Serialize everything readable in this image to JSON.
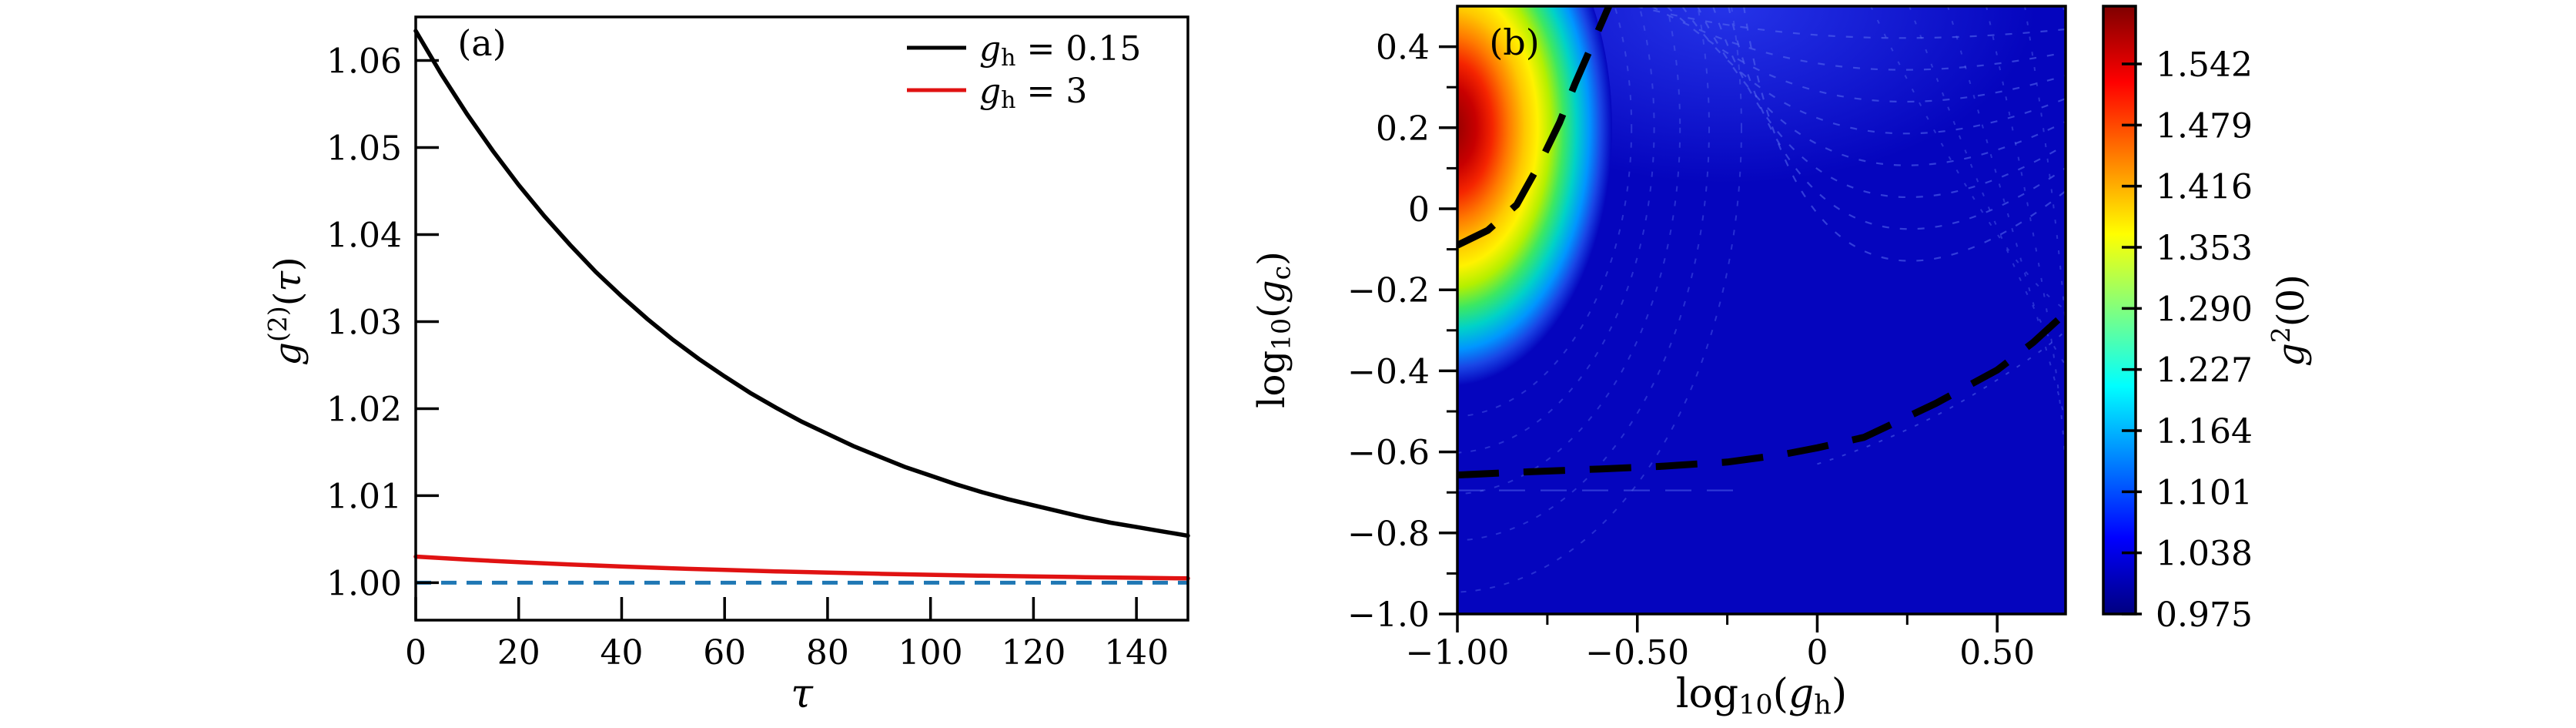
{
  "figure": {
    "background": "#ffffff"
  },
  "colors": {
    "axis": "#000000",
    "curve_black": "#000000",
    "curve_red": "#e01212",
    "baseline_blue": "#1f77b4",
    "heatmap_base": "#0505be",
    "heatmap_haze": "#2b3cf0",
    "contour_faint": "#5a6ef0",
    "dashed_boundary": "#000000"
  },
  "chart_data": {
    "panels": [
      {
        "type": "line",
        "panel_label": "(a)",
        "xlabel_parts": [
          {
            "t": "τ",
            "it": true
          }
        ],
        "ylabel_parts": [
          {
            "t": "g",
            "it": true
          },
          {
            "t": "(2)",
            "pos": "sup"
          },
          {
            "t": "("
          },
          {
            "t": "τ",
            "it": true
          },
          {
            "t": ")"
          }
        ],
        "xlim": [
          0,
          150
        ],
        "ylim": [
          0.9957,
          1.065
        ],
        "xticks": {
          "values": [
            0,
            20,
            40,
            60,
            80,
            100,
            120,
            140
          ],
          "labels": [
            "0",
            "20",
            "40",
            "60",
            "80",
            "100",
            "120",
            "140"
          ]
        },
        "yticks": {
          "values": [
            1.0,
            1.01,
            1.02,
            1.03,
            1.04,
            1.05,
            1.06
          ],
          "labels": [
            "1.00",
            "1.01",
            "1.02",
            "1.03",
            "1.04",
            "1.05",
            "1.06"
          ]
        },
        "legend": [
          {
            "label_parts": [
              {
                "t": "g",
                "it": true
              },
              {
                "t": "h",
                "pos": "sub"
              },
              {
                "t": " = 0.15"
              }
            ],
            "color_key": "curve_black"
          },
          {
            "label_parts": [
              {
                "t": "g",
                "it": true
              },
              {
                "t": "h",
                "pos": "sub"
              },
              {
                "t": " = 3"
              }
            ],
            "color_key": "curve_red"
          }
        ],
        "series": [
          {
            "name": "g_h = 0.15",
            "color_key": "curve_black",
            "x": [
              0,
              5,
              10,
              15,
              20,
              25,
              30,
              35,
              40,
              45,
              50,
              55,
              60,
              65,
              70,
              75,
              80,
              85,
              90,
              95,
              100,
              105,
              110,
              115,
              120,
              125,
              130,
              135,
              140,
              145,
              150
            ],
            "y": [
              1.0634,
              1.0584,
              1.0538,
              1.0496,
              1.0457,
              1.0421,
              1.0388,
              1.0357,
              1.0329,
              1.0303,
              1.0279,
              1.0257,
              1.0237,
              1.0218,
              1.0201,
              1.0185,
              1.0171,
              1.0157,
              1.0145,
              1.0133,
              1.0123,
              1.0113,
              1.0104,
              1.0096,
              1.0089,
              1.0082,
              1.0075,
              1.0069,
              1.0064,
              1.0059,
              1.0054
            ]
          },
          {
            "name": "g_h = 3",
            "color_key": "curve_red",
            "x": [
              0,
              10,
              20,
              30,
              40,
              50,
              60,
              70,
              80,
              90,
              100,
              110,
              120,
              130,
              140,
              150
            ],
            "y": [
              1.003,
              1.00266,
              1.00236,
              1.0021,
              1.00186,
              1.00165,
              1.00147,
              1.0013,
              1.00116,
              1.00103,
              1.00091,
              1.00081,
              1.00072,
              1.00064,
              1.00057,
              1.0005
            ]
          }
        ],
        "baseline": {
          "value": 1.0,
          "color_key": "baseline_blue",
          "style": "dashed"
        }
      },
      {
        "type": "heatmap",
        "panel_label": "(b)",
        "xlabel_parts": [
          {
            "t": "log"
          },
          {
            "t": "10",
            "pos": "sub"
          },
          {
            "t": "("
          },
          {
            "t": "g",
            "it": true
          },
          {
            "t": "h",
            "pos": "sub"
          },
          {
            "t": ")"
          }
        ],
        "ylabel_parts": [
          {
            "t": "log"
          },
          {
            "t": "10",
            "pos": "sub"
          },
          {
            "t": "("
          },
          {
            "t": "g",
            "it": true
          },
          {
            "t": "c",
            "pos": "sub"
          },
          {
            "t": ")"
          }
        ],
        "xlim": [
          -1.0,
          0.69
        ],
        "ylim": [
          -1.0,
          0.5
        ],
        "xticks": {
          "values": [
            -1.0,
            -0.5,
            0,
            0.5
          ],
          "labels": [
            "−1.00",
            "−0.50",
            "0",
            "0.50"
          ],
          "minor": [
            -0.75,
            -0.25,
            0.25
          ]
        },
        "yticks": {
          "values": [
            0.4,
            0.2,
            0,
            -0.2,
            -0.4,
            -0.6,
            -0.8,
            -1.0
          ],
          "labels": [
            "0.4",
            "0.2",
            "0",
            "−0.2",
            "−0.4",
            "−0.6",
            "−0.8",
            "−1.0"
          ],
          "minor": [
            0.3,
            0.1,
            -0.1,
            -0.3,
            -0.5,
            -0.7,
            -0.9
          ]
        },
        "colormap": "jet",
        "value_range": [
          0.975,
          1.602
        ],
        "hotspot": {
          "center": [
            -1.0,
            0.2
          ],
          "peak_value": 1.58,
          "note": "maximum of g2(0) hugging the left edge near log10(gc)=0.2, rainbow rings decaying to deep blue ~0.99 elsewhere",
          "gradient_stops": [
            [
              0,
              "#8a0000"
            ],
            [
              0.16,
              "#c80000"
            ],
            [
              0.26,
              "#f52500"
            ],
            [
              0.36,
              "#ff7a00"
            ],
            [
              0.46,
              "#ffc800"
            ],
            [
              0.54,
              "#fff200"
            ],
            [
              0.62,
              "#b4f000"
            ],
            [
              0.7,
              "#3ce862"
            ],
            [
              0.78,
              "#00d2c8"
            ],
            [
              0.86,
              "#0096ff"
            ],
            [
              0.93,
              "#1946e6"
            ],
            [
              1,
              "#0505be"
            ]
          ]
        },
        "dashed_curves": [
          {
            "name": "upper-phase-boundary",
            "points": [
              [
                -1.0,
                -0.09
              ],
              [
                -0.915,
                -0.053
              ],
              [
                -0.835,
                0.01
              ],
              [
                -0.771,
                0.112
              ],
              [
                -0.716,
                0.213
              ],
              [
                -0.673,
                0.309
              ],
              [
                -0.626,
                0.404
              ],
              [
                -0.579,
                0.5
              ]
            ]
          },
          {
            "name": "lower-phase-boundary",
            "points": [
              [
                -1.0,
                -0.657
              ],
              [
                -0.8,
                -0.649
              ],
              [
                -0.6,
                -0.642
              ],
              [
                -0.44,
                -0.636
              ],
              [
                -0.25,
                -0.625
              ],
              [
                -0.1,
                -0.607
              ],
              [
                0.0,
                -0.59
              ],
              [
                0.13,
                -0.564
              ],
              [
                0.33,
                -0.48
              ],
              [
                0.5,
                -0.398
              ],
              [
                0.6,
                -0.33
              ],
              [
                0.69,
                -0.257
              ]
            ]
          }
        ],
        "colorbar": {
          "tick_labels": [
            "1.542",
            "1.479",
            "1.416",
            "1.353",
            "1.290",
            "1.227",
            "1.164",
            "1.101",
            "1.038",
            "0.975"
          ],
          "tick_values": [
            1.542,
            1.479,
            1.416,
            1.353,
            1.29,
            1.227,
            1.164,
            1.101,
            1.038,
            0.975
          ],
          "label_parts": [
            {
              "t": "g",
              "it": true
            },
            {
              "t": "2",
              "pos": "sup"
            },
            {
              "t": "(0)"
            }
          ],
          "jet_stops": [
            [
              0,
              "#7f0000"
            ],
            [
              0.125,
              "#ff0000"
            ],
            [
              0.375,
              "#ffff00"
            ],
            [
              0.625,
              "#00ffff"
            ],
            [
              0.875,
              "#0000ff"
            ],
            [
              1,
              "#000080"
            ]
          ]
        }
      }
    ]
  }
}
